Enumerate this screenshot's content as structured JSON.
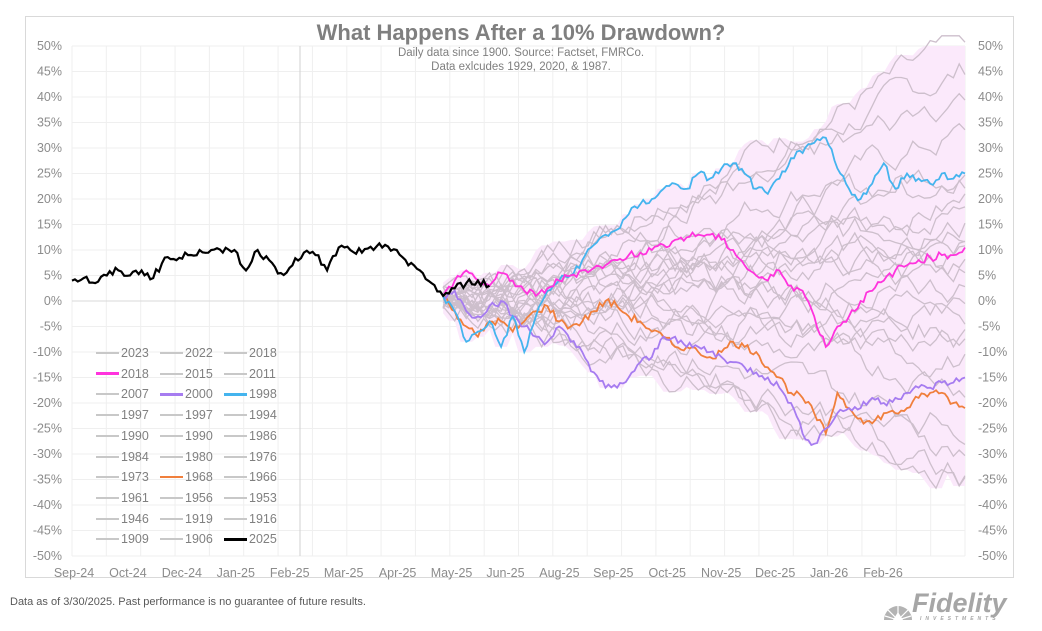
{
  "chart_data": {
    "type": "line",
    "title": "What Happens After a 10% Drawdown?",
    "subtitle_lines": [
      "Daily data since 1900.  Source: Factset, FMRCo.",
      "Data exlcudes 1929, 2020, & 1987."
    ],
    "xlabel": "",
    "ylabel": "",
    "ylim": [
      -50,
      50
    ],
    "y_ticks": [
      "50%",
      "45%",
      "40%",
      "35%",
      "30%",
      "25%",
      "20%",
      "15%",
      "10%",
      "5%",
      "0%",
      "-5%",
      "-10%",
      "-15%",
      "-20%",
      "-25%",
      "-30%",
      "-35%",
      "-40%",
      "-45%",
      "-50%"
    ],
    "x_ticks": [
      "Sep-24",
      "Oct-24",
      "Dec-24",
      "Jan-25",
      "Feb-25",
      "Mar-25",
      "Apr-25",
      "May-25",
      "Jun-25",
      "Aug-25",
      "Sep-25",
      "Oct-25",
      "Nov-25",
      "Dec-25",
      "Jan-26",
      "Feb-26"
    ],
    "grid": true,
    "band": {
      "name": "range of historical paths",
      "color": "#fbe9fb"
    },
    "highlight_series": [
      {
        "name": "2025",
        "color": "#000000",
        "points": [
          [
            0,
            4
          ],
          [
            2,
            4.5
          ],
          [
            4,
            3.5
          ],
          [
            6,
            5
          ],
          [
            8,
            6
          ],
          [
            10,
            5
          ],
          [
            12,
            6
          ],
          [
            14,
            4.5
          ],
          [
            16,
            8.5
          ],
          [
            18,
            8
          ],
          [
            20,
            9
          ],
          [
            22,
            10
          ],
          [
            24,
            10
          ],
          [
            26,
            9.5
          ],
          [
            28,
            10
          ],
          [
            30,
            6
          ],
          [
            32,
            10
          ],
          [
            34,
            8
          ],
          [
            36,
            5.5
          ],
          [
            38,
            7
          ],
          [
            40,
            9.5
          ],
          [
            42,
            9
          ],
          [
            44,
            6
          ],
          [
            46,
            10.5
          ],
          [
            48,
            10
          ],
          [
            50,
            9.5
          ],
          [
            52,
            10
          ],
          [
            54,
            11
          ],
          [
            56,
            10
          ],
          [
            58,
            7
          ],
          [
            60,
            6
          ],
          [
            62,
            3.5
          ],
          [
            64,
            1
          ],
          [
            66,
            2.5
          ],
          [
            68,
            3.5
          ],
          [
            70,
            4
          ],
          [
            72,
            3
          ]
        ]
      },
      {
        "name": "2018",
        "color": "#ff33dd",
        "points": [
          [
            64,
            1
          ],
          [
            66,
            4
          ],
          [
            68,
            6
          ],
          [
            70,
            4
          ],
          [
            72,
            3
          ],
          [
            74,
            5.5
          ],
          [
            76,
            4
          ],
          [
            78,
            2
          ],
          [
            80,
            1
          ],
          [
            82,
            2.5
          ],
          [
            84,
            4
          ],
          [
            86,
            5
          ],
          [
            88,
            6
          ],
          [
            90,
            6.5
          ],
          [
            92,
            7
          ],
          [
            94,
            8
          ],
          [
            96,
            9
          ],
          [
            98,
            9.5
          ],
          [
            100,
            10
          ],
          [
            102,
            11
          ],
          [
            104,
            12
          ],
          [
            106,
            12.5
          ],
          [
            108,
            13
          ],
          [
            110,
            13
          ],
          [
            112,
            12
          ],
          [
            114,
            10
          ],
          [
            116,
            7
          ],
          [
            118,
            5
          ],
          [
            120,
            4
          ],
          [
            122,
            6
          ],
          [
            124,
            3
          ],
          [
            126,
            2
          ],
          [
            128,
            -3
          ],
          [
            130,
            -9
          ],
          [
            132,
            -5
          ],
          [
            134,
            -3
          ],
          [
            136,
            0
          ],
          [
            138,
            2
          ],
          [
            140,
            4
          ],
          [
            142,
            6
          ],
          [
            144,
            7
          ],
          [
            146,
            8
          ],
          [
            148,
            8.5
          ],
          [
            150,
            9
          ],
          [
            152,
            9
          ],
          [
            154,
            10.5
          ]
        ]
      },
      {
        "name": "1998",
        "color": "#44b4ee",
        "points": [
          [
            64,
            1
          ],
          [
            66,
            -2
          ],
          [
            68,
            -8
          ],
          [
            70,
            -6
          ],
          [
            72,
            -4
          ],
          [
            74,
            -9
          ],
          [
            76,
            -3
          ],
          [
            78,
            -10
          ],
          [
            80,
            -3
          ],
          [
            82,
            2
          ],
          [
            84,
            4
          ],
          [
            86,
            5
          ],
          [
            88,
            8
          ],
          [
            90,
            11
          ],
          [
            92,
            13
          ],
          [
            94,
            14
          ],
          [
            96,
            17
          ],
          [
            98,
            19
          ],
          [
            100,
            20
          ],
          [
            102,
            22
          ],
          [
            104,
            23
          ],
          [
            106,
            22
          ],
          [
            108,
            25
          ],
          [
            110,
            24
          ],
          [
            112,
            26
          ],
          [
            114,
            27
          ],
          [
            116,
            25
          ],
          [
            118,
            22
          ],
          [
            120,
            21
          ],
          [
            122,
            24
          ],
          [
            124,
            28
          ],
          [
            126,
            29
          ],
          [
            128,
            31
          ],
          [
            130,
            32
          ],
          [
            132,
            26
          ],
          [
            134,
            22
          ],
          [
            136,
            20
          ],
          [
            138,
            23
          ],
          [
            140,
            27
          ],
          [
            142,
            22
          ],
          [
            144,
            25
          ],
          [
            146,
            24
          ],
          [
            148,
            23
          ],
          [
            150,
            25
          ],
          [
            152,
            24
          ],
          [
            154,
            25
          ]
        ]
      },
      {
        "name": "2000",
        "color": "#a67cf0",
        "points": [
          [
            64,
            1
          ],
          [
            66,
            2
          ],
          [
            68,
            -2
          ],
          [
            70,
            -3
          ],
          [
            72,
            -1
          ],
          [
            74,
            0
          ],
          [
            76,
            -3
          ],
          [
            78,
            -5
          ],
          [
            80,
            -7
          ],
          [
            82,
            -8
          ],
          [
            84,
            -5
          ],
          [
            86,
            -8
          ],
          [
            88,
            -10
          ],
          [
            90,
            -14
          ],
          [
            92,
            -17
          ],
          [
            94,
            -17
          ],
          [
            96,
            -15
          ],
          [
            98,
            -12
          ],
          [
            100,
            -11
          ],
          [
            102,
            -7
          ],
          [
            104,
            -7
          ],
          [
            106,
            -9
          ],
          [
            108,
            -9
          ],
          [
            110,
            -10
          ],
          [
            112,
            -11
          ],
          [
            114,
            -12
          ],
          [
            116,
            -13
          ],
          [
            118,
            -14
          ],
          [
            120,
            -15
          ],
          [
            122,
            -17
          ],
          [
            124,
            -20
          ],
          [
            126,
            -26
          ],
          [
            128,
            -28
          ],
          [
            130,
            -25
          ],
          [
            132,
            -22
          ],
          [
            134,
            -21
          ],
          [
            136,
            -21
          ],
          [
            138,
            -19
          ],
          [
            140,
            -20
          ],
          [
            142,
            -19
          ],
          [
            144,
            -18
          ],
          [
            146,
            -17
          ],
          [
            148,
            -17
          ],
          [
            150,
            -16
          ],
          [
            152,
            -16
          ],
          [
            154,
            -15
          ]
        ]
      },
      {
        "name": "1968",
        "color": "#f07f3c",
        "points": [
          [
            64,
            1
          ],
          [
            66,
            -2
          ],
          [
            68,
            -5
          ],
          [
            70,
            -7
          ],
          [
            72,
            -4
          ],
          [
            74,
            -4
          ],
          [
            76,
            -6
          ],
          [
            78,
            -4
          ],
          [
            80,
            -2
          ],
          [
            82,
            -1
          ],
          [
            84,
            -4
          ],
          [
            86,
            -5
          ],
          [
            88,
            -4
          ],
          [
            90,
            -2
          ],
          [
            92,
            0
          ],
          [
            94,
            -1
          ],
          [
            96,
            -3
          ],
          [
            98,
            -4
          ],
          [
            100,
            -6
          ],
          [
            102,
            -7
          ],
          [
            104,
            -9
          ],
          [
            106,
            -9
          ],
          [
            108,
            -10
          ],
          [
            110,
            -11
          ],
          [
            112,
            -10
          ],
          [
            114,
            -8
          ],
          [
            116,
            -9
          ],
          [
            118,
            -10
          ],
          [
            120,
            -13
          ],
          [
            122,
            -15
          ],
          [
            124,
            -18
          ],
          [
            126,
            -19
          ],
          [
            128,
            -22
          ],
          [
            130,
            -26
          ],
          [
            132,
            -18
          ],
          [
            134,
            -21
          ],
          [
            136,
            -23
          ],
          [
            138,
            -24
          ],
          [
            140,
            -22
          ],
          [
            142,
            -22
          ],
          [
            144,
            -21
          ],
          [
            146,
            -19
          ],
          [
            148,
            -18
          ],
          [
            150,
            -18
          ],
          [
            152,
            -20
          ],
          [
            154,
            -21
          ]
        ]
      }
    ],
    "other_series_color": "#cdbfcc",
    "other_series": [
      {
        "name": "2023",
        "end": 47
      },
      {
        "name": "2022",
        "end": 52
      },
      {
        "name": "2018b",
        "end": 34
      },
      {
        "name": "2015",
        "end": 28
      },
      {
        "name": "2011",
        "end": 20
      },
      {
        "name": "2007",
        "end": 17
      },
      {
        "name": "1997",
        "end": 15
      },
      {
        "name": "1997b",
        "end": 13
      },
      {
        "name": "1994",
        "end": 10
      },
      {
        "name": "1990",
        "end": 8
      },
      {
        "name": "1990b",
        "end": 5
      },
      {
        "name": "1986",
        "end": 3
      },
      {
        "name": "1984",
        "end": 1
      },
      {
        "name": "1980",
        "end": -3
      },
      {
        "name": "1976",
        "end": -6
      },
      {
        "name": "1973",
        "end": -9
      },
      {
        "name": "1966",
        "end": -12
      },
      {
        "name": "1961",
        "end": -16
      },
      {
        "name": "1956",
        "end": -25
      },
      {
        "name": "1953",
        "end": -30
      },
      {
        "name": "1946",
        "end": -35
      },
      {
        "name": "1919",
        "end": -37
      },
      {
        "name": "1916",
        "end": 24
      },
      {
        "name": "1909",
        "end": 18
      },
      {
        "name": "1906",
        "end": 42
      }
    ],
    "legend": {
      "placement": "bottom-left",
      "columns": [
        [
          {
            "label": "2023",
            "color": "#c8c8c8"
          },
          {
            "label": "2018",
            "color": "#ff33dd"
          },
          {
            "label": "2007",
            "color": "#c8c8c8"
          },
          {
            "label": "1997",
            "color": "#c8c8c8"
          },
          {
            "label": "1990",
            "color": "#c8c8c8"
          },
          {
            "label": "1984",
            "color": "#c8c8c8"
          },
          {
            "label": "1973",
            "color": "#c8c8c8"
          },
          {
            "label": "1961",
            "color": "#c8c8c8"
          },
          {
            "label": "1946",
            "color": "#c8c8c8"
          },
          {
            "label": "1909",
            "color": "#c8c8c8"
          }
        ],
        [
          {
            "label": "2022",
            "color": "#c8c8c8"
          },
          {
            "label": "2015",
            "color": "#c8c8c8"
          },
          {
            "label": "2000",
            "color": "#a67cf0"
          },
          {
            "label": "1997",
            "color": "#c8c8c8"
          },
          {
            "label": "1990",
            "color": "#c8c8c8"
          },
          {
            "label": "1980",
            "color": "#c8c8c8"
          },
          {
            "label": "1968",
            "color": "#f07f3c"
          },
          {
            "label": "1956",
            "color": "#c8c8c8"
          },
          {
            "label": "1919",
            "color": "#c8c8c8"
          },
          {
            "label": "1906",
            "color": "#c8c8c8"
          }
        ],
        [
          {
            "label": "2018",
            "color": "#c8c8c8"
          },
          {
            "label": "2011",
            "color": "#c8c8c8"
          },
          {
            "label": "1998",
            "color": "#44b4ee"
          },
          {
            "label": "1994",
            "color": "#c8c8c8"
          },
          {
            "label": "1986",
            "color": "#c8c8c8"
          },
          {
            "label": "1976",
            "color": "#c8c8c8"
          },
          {
            "label": "1966",
            "color": "#c8c8c8"
          },
          {
            "label": "1953",
            "color": "#c8c8c8"
          },
          {
            "label": "1916",
            "color": "#c8c8c8"
          },
          {
            "label": "2025",
            "color": "#000000"
          }
        ]
      ]
    }
  },
  "footer": {
    "disclaimer": "Data as of 3/30/2025. Past performance is no guarantee of future results.",
    "logo_text": "Fidelity",
    "logo_subtext": "INVESTMENTS"
  }
}
